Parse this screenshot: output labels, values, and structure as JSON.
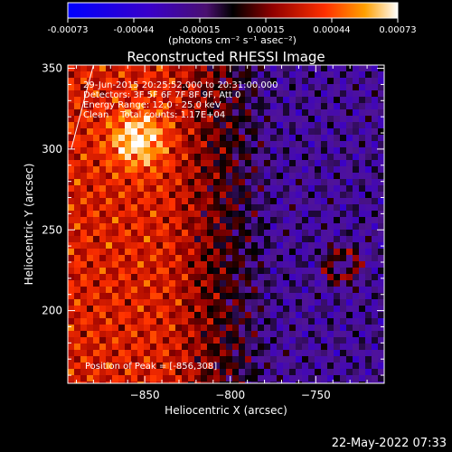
{
  "chart_data": {
    "type": "heatmap",
    "title": "Reconstructed RHESSI Image",
    "xlabel": "Heliocentric X (arcsec)",
    "ylabel": "Heliocentric Y (arcsec)",
    "xlim": [
      -895,
      -710
    ],
    "ylim": [
      155,
      352
    ],
    "x_ticks": [
      -850,
      -800,
      -750
    ],
    "y_ticks": [
      200,
      250,
      300,
      350
    ],
    "colorbar": {
      "range": [
        -0.00073,
        0.00073
      ],
      "ticks": [
        "-0.00073",
        "-0.00044",
        "-0.00015",
        "0.00015",
        "0.00044",
        "0.00073"
      ],
      "unit_label": "(photons cm⁻² s⁻¹ asec⁻²)",
      "colormap": [
        "#0000ff",
        "#3a00c8",
        "#5f2aa0",
        "#000000",
        "#800000",
        "#ff2000",
        "#ff9a00",
        "#ffffff"
      ]
    },
    "annotations": [
      "29-Jun-2015 20:25:52.000 to 20:31:00.000",
      "Detectors: 3F 5F 6F 7F 8F 9F, Att 0",
      "Energy Range: 12.0 - 25.0 keV",
      "Clean    Total counts: 1.17E+04",
      "Position of Peak = [-856,308]"
    ],
    "limb_line": {
      "x": [
        -893,
        -880
      ],
      "y": [
        300,
        352
      ]
    },
    "peak": {
      "x": -856,
      "y": 308
    }
  },
  "footer": {
    "timestamp": "22-May-2022 07:33"
  }
}
